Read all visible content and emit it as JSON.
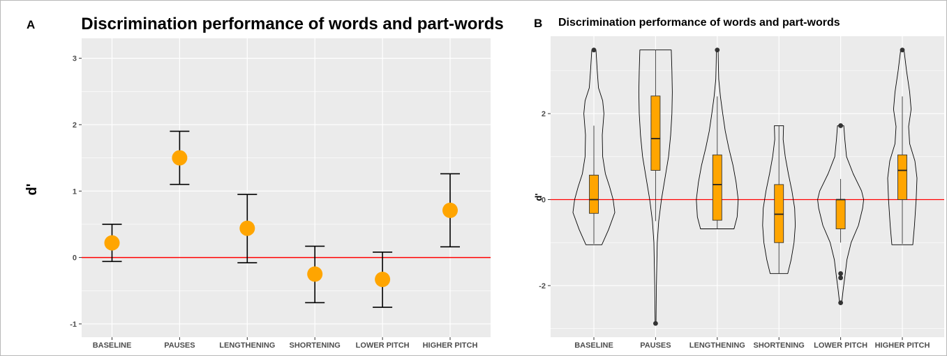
{
  "colors": {
    "panel_bg": "#ebebeb",
    "grid_major": "#ffffff",
    "reference_line": "#ff0000",
    "point_fill": "#ffa500",
    "box_fill": "#ffa500",
    "outline": "#000000"
  },
  "chart_data": [
    {
      "panel_label": "A",
      "type": "scatter",
      "subtype": "point-with-error-bars",
      "title": "Discrimination performance of words and part-words",
      "xlabel": "",
      "ylabel": "d'",
      "ylim": [
        -1.2,
        3.3
      ],
      "yticks": [
        -1,
        0,
        1,
        2,
        3
      ],
      "grid": true,
      "reference_line_y": 0,
      "categories": [
        "BASELINE",
        "PAUSES",
        "LENGTHENING",
        "SHORTENING",
        "LOWER PITCH",
        "HIGHER PITCH"
      ],
      "means": [
        0.22,
        1.5,
        0.44,
        -0.25,
        -0.33,
        0.71
      ],
      "error_low": [
        -0.06,
        1.1,
        -0.08,
        -0.68,
        -0.75,
        0.16
      ],
      "error_high": [
        0.5,
        1.9,
        0.95,
        0.17,
        0.08,
        1.26
      ]
    },
    {
      "panel_label": "B",
      "type": "violin",
      "subtype": "violin-with-boxplot",
      "title": "Discrimination performance of words and part-words",
      "xlabel": "",
      "ylabel": "d'",
      "ylim": [
        -3.2,
        3.8
      ],
      "yticks": [
        -2,
        0,
        2
      ],
      "grid": true,
      "reference_line_y": 0,
      "categories": [
        "BASELINE",
        "PAUSES",
        "LENGTHENING",
        "SHORTENING",
        "LOWER PITCH",
        "HIGHER PITCH"
      ],
      "boxes": [
        {
          "q1": -0.32,
          "median": 0.0,
          "q3": 0.57,
          "whisker_low": -1.03,
          "whisker_high": 1.72,
          "outliers": [
            3.48
          ]
        },
        {
          "q1": 0.68,
          "median": 1.42,
          "q3": 2.41,
          "whisker_low": -0.5,
          "whisker_high": 3.48,
          "outliers": [
            -2.88
          ]
        },
        {
          "q1": -0.48,
          "median": 0.35,
          "q3": 1.04,
          "whisker_low": -0.68,
          "whisker_high": 2.4,
          "outliers": [
            3.48
          ]
        },
        {
          "q1": -1.0,
          "median": -0.34,
          "q3": 0.35,
          "whisker_low": -1.72,
          "whisker_high": 1.72,
          "outliers": []
        },
        {
          "q1": -0.68,
          "median": 0.0,
          "q3": 0.0,
          "whisker_low": -1.0,
          "whisker_high": 0.48,
          "outliers": [
            1.72,
            1.72,
            -1.72,
            -1.82,
            -2.4
          ]
        },
        {
          "q1": 0.0,
          "median": 0.68,
          "q3": 1.04,
          "whisker_low": -1.03,
          "whisker_high": 2.4,
          "outliers": [
            3.48
          ]
        }
      ],
      "violins": [
        {
          "ys": [
            -1.05,
            -0.7,
            -0.3,
            0.0,
            0.3,
            0.6,
            1.0,
            1.5,
            2.0,
            2.3,
            2.6,
            3.0,
            3.48
          ],
          "density": [
            0.38,
            0.7,
            1.0,
            0.92,
            0.75,
            0.55,
            0.42,
            0.4,
            0.48,
            0.42,
            0.22,
            0.16,
            0.1
          ]
        },
        {
          "ys": [
            -2.88,
            -2.0,
            -1.0,
            -0.5,
            0.0,
            0.5,
            1.0,
            1.5,
            2.0,
            2.5,
            3.0,
            3.48
          ],
          "density": [
            0.02,
            0.04,
            0.08,
            0.15,
            0.28,
            0.45,
            0.62,
            0.72,
            0.78,
            0.8,
            0.78,
            0.75
          ]
        },
        {
          "ys": [
            -0.68,
            -0.4,
            0.0,
            0.4,
            0.8,
            1.2,
            1.6,
            2.0,
            2.4,
            2.8,
            3.2,
            3.48
          ],
          "density": [
            0.8,
            0.95,
            1.0,
            0.9,
            0.75,
            0.55,
            0.38,
            0.26,
            0.15,
            0.07,
            0.05,
            0.04
          ]
        },
        {
          "ys": [
            -1.72,
            -1.4,
            -1.0,
            -0.6,
            -0.2,
            0.2,
            0.6,
            1.0,
            1.4,
            1.72
          ],
          "density": [
            0.42,
            0.58,
            0.72,
            0.78,
            0.75,
            0.62,
            0.45,
            0.3,
            0.2,
            0.22
          ]
        },
        {
          "ys": [
            -2.4,
            -2.1,
            -1.8,
            -1.4,
            -1.0,
            -0.6,
            -0.2,
            0.0,
            0.2,
            0.6,
            1.0,
            1.4,
            1.72
          ],
          "density": [
            0.05,
            0.12,
            0.2,
            0.3,
            0.5,
            0.85,
            1.05,
            1.1,
            1.0,
            0.6,
            0.28,
            0.2,
            0.15
          ]
        },
        {
          "ys": [
            -1.05,
            -0.6,
            0.0,
            0.5,
            0.9,
            1.3,
            1.7,
            2.1,
            2.5,
            3.0,
            3.48
          ],
          "density": [
            0.5,
            0.58,
            0.66,
            0.7,
            0.6,
            0.35,
            0.3,
            0.42,
            0.35,
            0.2,
            0.08
          ]
        }
      ]
    }
  ]
}
